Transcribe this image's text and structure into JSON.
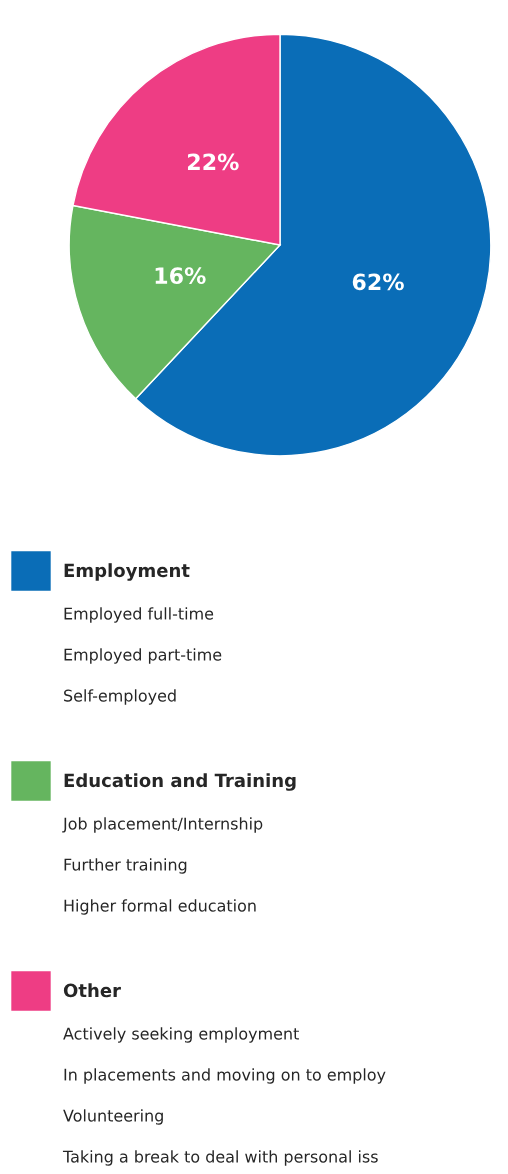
{
  "chart_data": {
    "type": "pie",
    "categories": [
      "Employment",
      "Education and Training",
      "Other"
    ],
    "values": [
      62,
      16,
      22
    ],
    "colors": [
      "#0a6db7",
      "#65b55f",
      "#ee3d84"
    ],
    "value_labels": [
      "62%",
      "16%",
      "22%"
    ],
    "legend": "bottom",
    "annotations": [
      "Employed full-time",
      "Employed part-time",
      "Self-employed",
      "Job placement/Internship",
      "Further training",
      "Higher formal education",
      "Actively seeking employment",
      "In placements and moving on to employ",
      "Volunteering",
      "Taking a break to deal with personal iss"
    ]
  }
}
